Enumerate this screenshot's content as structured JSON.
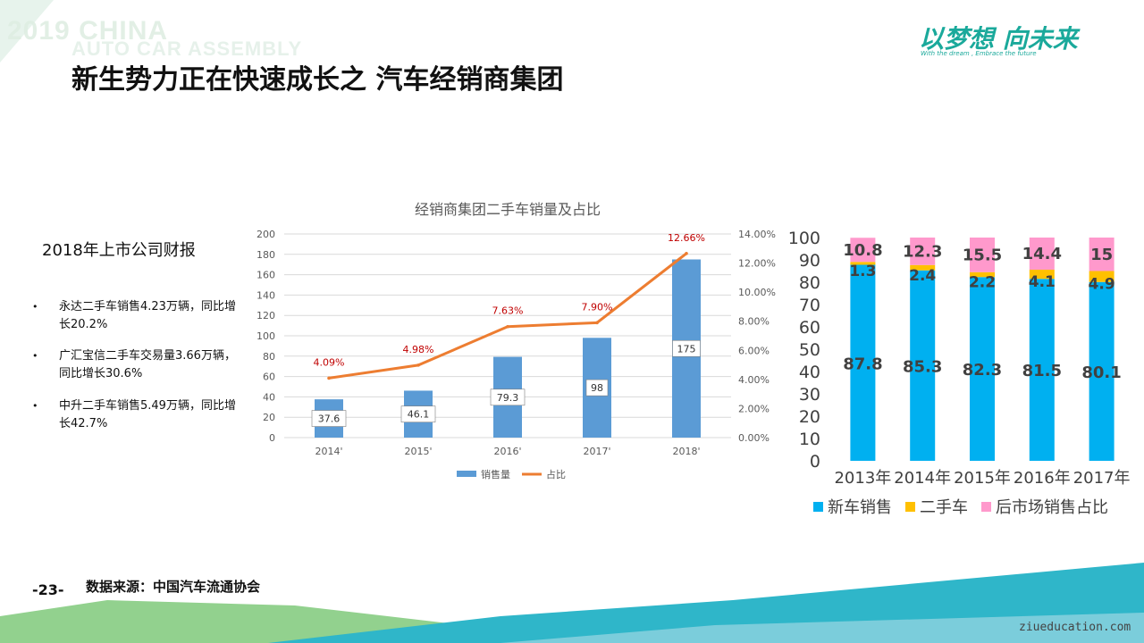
{
  "header": {
    "watermark_line1": "2019 CHINA",
    "watermark_line2": "AUTO CAR ASSEMBLY",
    "title": "新生势力正在快速成长之 汽车经销商集团",
    "logo_text": "以梦想 向未来",
    "logo_subtext": "With the dream , Embrace the future"
  },
  "sidebar": {
    "heading": "2018年上市公司财报",
    "bullets": [
      {
        "marker": "•",
        "text": "永达二手车销售4.23万辆，同比增长20.2%"
      },
      {
        "marker": "•",
        "text": "广汇宝信二手车交易量3.66万辆，同比增长30.6%"
      },
      {
        "marker": "•",
        "text": "中升二手车销售5.49万辆，同比增长42.7%"
      }
    ]
  },
  "footer": {
    "page_number": "-23-",
    "source": "数据来源：中国汽车流通协会",
    "url": "ziueducation.com"
  },
  "colors": {
    "bar_blue": "#5b9bd5",
    "line_orange": "#ed7d31",
    "percent_red": "#c00000",
    "stack_new": "#00b0f0",
    "stack_used": "#ffc000",
    "stack_after": "#ff99cc",
    "footer_band_teal": "#2fb6c9",
    "footer_band_green": "#7fc97a"
  },
  "chart_data": [
    {
      "type": "bar",
      "title": "经销商集团二手车销量及占比",
      "categories": [
        "2014'",
        "2015'",
        "2016'",
        "2017'",
        "2018'"
      ],
      "series": [
        {
          "name": "销售量",
          "type": "bar",
          "values": [
            37.6,
            46.1,
            79.3,
            98,
            175
          ],
          "labels": [
            "37.6",
            "46.1",
            "79.3",
            "98",
            "175"
          ]
        },
        {
          "name": "占比",
          "type": "line",
          "axis": "right",
          "values": [
            4.09,
            4.98,
            7.63,
            7.9,
            12.66
          ],
          "labels": [
            "4.09%",
            "4.98%",
            "7.63%",
            "7.90%",
            "12.66%"
          ]
        }
      ],
      "ylim": [
        0,
        200
      ],
      "yticks": [
        "0",
        "20",
        "40",
        "60",
        "80",
        "100",
        "120",
        "140",
        "160",
        "180",
        "200"
      ],
      "y2lim": [
        0,
        14
      ],
      "y2ticks": [
        "0.00%",
        "2.00%",
        "4.00%",
        "6.00%",
        "8.00%",
        "10.00%",
        "12.00%",
        "14.00%"
      ],
      "legend_position": "bottom",
      "grid": true
    },
    {
      "type": "bar",
      "stacked": true,
      "categories": [
        "2013年",
        "2014年",
        "2015年",
        "2016年",
        "2017年"
      ],
      "series": [
        {
          "name": "新车销售",
          "values": [
            87.8,
            85.3,
            82.3,
            81.5,
            80.1
          ],
          "labels": [
            "87.8",
            "85.3",
            "82.3",
            "81.5",
            "80.1"
          ]
        },
        {
          "name": "二手车",
          "values": [
            1.3,
            2.4,
            2.2,
            4.1,
            4.9
          ],
          "labels": [
            "1.3",
            "2.4",
            "2.2",
            "4.1",
            "4.9"
          ]
        },
        {
          "name": "后市场销售占比",
          "values": [
            10.8,
            12.3,
            15.5,
            14.4,
            15
          ],
          "labels": [
            "10.8",
            "12.3",
            "15.5",
            "14.4",
            "15"
          ]
        }
      ],
      "ylim": [
        0,
        100
      ],
      "yticks": [
        "0",
        "10",
        "20",
        "30",
        "40",
        "50",
        "60",
        "70",
        "80",
        "90",
        "100"
      ],
      "legend_position": "bottom",
      "grid": false
    }
  ]
}
